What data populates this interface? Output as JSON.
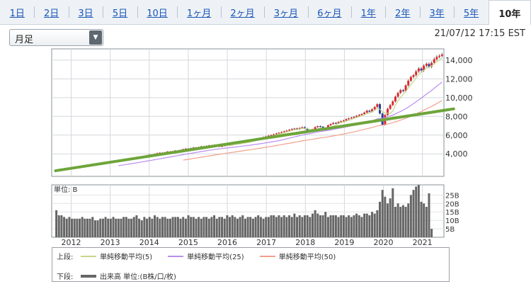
{
  "tabs": [
    {
      "label": "1日",
      "active": false
    },
    {
      "label": "2日",
      "active": false
    },
    {
      "label": "3日",
      "active": false
    },
    {
      "label": "5日",
      "active": false
    },
    {
      "label": "10日",
      "active": false
    },
    {
      "label": "1ヶ月",
      "active": false
    },
    {
      "label": "2ヶ月",
      "active": false
    },
    {
      "label": "3ヶ月",
      "active": false
    },
    {
      "label": "6ヶ月",
      "active": false
    },
    {
      "label": "1年",
      "active": false
    },
    {
      "label": "2年",
      "active": false
    },
    {
      "label": "3年",
      "active": false
    },
    {
      "label": "5年",
      "active": false
    },
    {
      "label": "10年",
      "active": true
    }
  ],
  "period_select": {
    "value": "月足"
  },
  "timestamp": "21/07/12 17:15 EST",
  "volume_unit_label": "単位: B",
  "legend": {
    "upper_label": "上段:",
    "lower_label": "下段:",
    "upper_items": [
      {
        "label": "単純移動平均(5)",
        "color": "#c8d68a"
      },
      {
        "label": "単純移動平均(25)",
        "color": "#b98ef0"
      },
      {
        "label": "単純移動平均(50)",
        "color": "#f2a08a"
      }
    ],
    "lower_item": {
      "label": "出来高 単位:(B株/口/枚)",
      "color": "#666666"
    }
  },
  "colors": {
    "up": "#e0282b",
    "down": "#2a3f9e",
    "volume": "#666666",
    "trendline": "#6ea53a"
  },
  "chart_data": [
    {
      "type": "candlestick",
      "title": "",
      "x_ticks": [
        "2012",
        "2013",
        "2014",
        "2015",
        "2016",
        "2017",
        "2018",
        "2019",
        "2020",
        "2021"
      ],
      "y_ticks": [
        "4,000",
        "6,000",
        "8,000",
        "10,000",
        "12,000",
        "14,000"
      ],
      "ylim": [
        1600,
        15200
      ],
      "x_start_year": 2011.5,
      "x_end_year": 2021.55,
      "grid": true,
      "close": [
        2250,
        2310,
        2380,
        2330,
        2420,
        2480,
        2460,
        2540,
        2600,
        2580,
        2650,
        2700,
        2760,
        2720,
        2800,
        2870,
        2920,
        2880,
        2950,
        3030,
        3120,
        3080,
        3180,
        3260,
        3310,
        3250,
        3340,
        3420,
        3500,
        3450,
        3560,
        3640,
        3700,
        3680,
        3780,
        3850,
        3920,
        3880,
        3990,
        4080,
        4120,
        4060,
        4170,
        4250,
        4200,
        4290,
        4360,
        4320,
        4420,
        4500,
        4560,
        4500,
        4610,
        4680,
        4640,
        4720,
        4800,
        4760,
        4850,
        4910,
        4870,
        4950,
        4900,
        4760,
        4830,
        4920,
        4980,
        4940,
        5050,
        5120,
        5080,
        5150,
        5200,
        5260,
        5320,
        5400,
        5480,
        5560,
        5640,
        5700,
        5780,
        5860,
        5940,
        6000,
        6080,
        6180,
        6250,
        6320,
        6400,
        6480,
        6560,
        6650,
        6700,
        6620,
        6760,
        6840,
        6700,
        6450,
        6380,
        6600,
        6850,
        6950,
        6900,
        6500,
        6620,
        7050,
        7180,
        7300,
        7250,
        7400,
        7480,
        7560,
        7700,
        7780,
        7860,
        7950,
        8050,
        8150,
        8250,
        8400,
        8600,
        8500,
        8750,
        9000,
        9300,
        8300,
        7100,
        8150,
        8800,
        9200,
        9600,
        10100,
        10500,
        10800,
        10700,
        11300,
        11800,
        12200,
        12400,
        12800,
        13100,
        12900,
        13400,
        13600,
        13300,
        13700,
        14100,
        14350,
        14450,
        14600
      ]
    },
    {
      "type": "line",
      "series": [
        {
          "name": "単純移動平均(5)",
          "period": 5
        },
        {
          "name": "単純移動平均(25)",
          "period": 25
        },
        {
          "name": "単純移動平均(50)",
          "period": 50
        }
      ],
      "trendline": {
        "from": [
          2011.6,
          2200
        ],
        "to": [
          2021.8,
          8800
        ]
      }
    },
    {
      "type": "bar",
      "ylabel": "単位: B",
      "y_ticks": [
        "5B",
        "10B",
        "15B",
        "20B",
        "25B"
      ],
      "ylim": [
        0,
        31
      ],
      "values": [
        16,
        13,
        13,
        12,
        11,
        12,
        11,
        11,
        11,
        11,
        12,
        11,
        11,
        11,
        12,
        10,
        10,
        11,
        11,
        12,
        11,
        11,
        12,
        11,
        11,
        11,
        12,
        12,
        11,
        11,
        12,
        13,
        11,
        10,
        12,
        11,
        12,
        11,
        13,
        12,
        11,
        12,
        12,
        11,
        11,
        12,
        12,
        12,
        11,
        12,
        11,
        13,
        12,
        12,
        11,
        12,
        11,
        12,
        12,
        11,
        12,
        13,
        11,
        12,
        12,
        11,
        13,
        12,
        13,
        12,
        11,
        12,
        13,
        11,
        12,
        12,
        11,
        12,
        13,
        12,
        11,
        12,
        12,
        13,
        13,
        12,
        13,
        12,
        13,
        12,
        13,
        12,
        14,
        12,
        13,
        12,
        13,
        13,
        12,
        14,
        16,
        14,
        13,
        13,
        15,
        12,
        13,
        13,
        13,
        12,
        13,
        13,
        12,
        13,
        12,
        13,
        14,
        13,
        12,
        14,
        14,
        13,
        15,
        14,
        16,
        21,
        28,
        24,
        20,
        23,
        29,
        18,
        20,
        18,
        19,
        18,
        20,
        25,
        28,
        30,
        31,
        21,
        20,
        18,
        26,
        5
      ]
    }
  ]
}
